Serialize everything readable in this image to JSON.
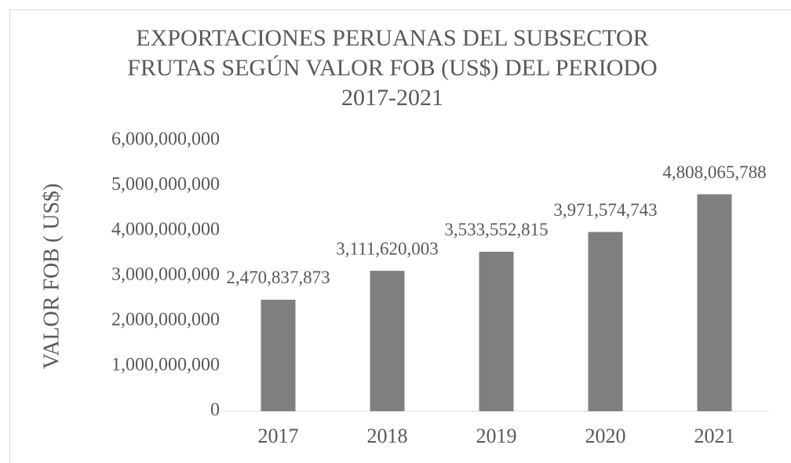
{
  "chart_data": {
    "type": "bar",
    "title": "EXPORTACIONES PERUANAS DEL SUBSECTOR FRUTAS SEGÚN VALOR FOB (US$) DEL PERIODO 2017-2021",
    "y_label": "VALOR FOB ( US$)",
    "categories": [
      "2017",
      "2018",
      "2019",
      "2020",
      "2021"
    ],
    "values": [
      2470837873,
      3111620003,
      3533552815,
      3971574743,
      4808065788
    ],
    "value_labels": [
      "2,470,837,873",
      "3,111,620,003",
      "3,533,552,815",
      "3,971,574,743",
      "4,808,065,788"
    ],
    "color": "#7f7f7f",
    "ylim": [
      0,
      6000000000
    ],
    "yticks": [
      0,
      {
        "value": 1000000000,
        "label": "1,000,000,000"
      },
      {
        "value": 2000000000,
        "label": "2,000,000,000"
      },
      {
        "value": 3000000000,
        "label": "3,000,000,000"
      },
      {
        "value": 4000000000,
        "label": "4,000,000,000"
      },
      {
        "value": 5000000000,
        "label": "5,000,000,000"
      },
      {
        "value": 6000000000,
        "label": "6,000,000,000"
      }
    ],
    "grid": false
  }
}
